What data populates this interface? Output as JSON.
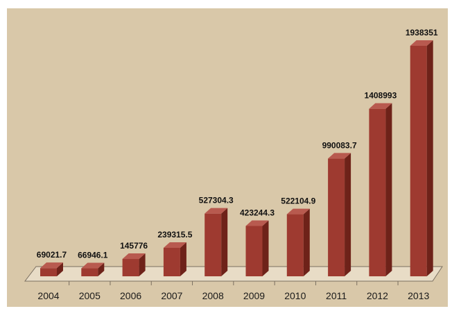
{
  "chart_data": {
    "type": "bar",
    "title": "",
    "xlabel": "",
    "ylabel": "",
    "categories": [
      "2004",
      "2005",
      "2006",
      "2007",
      "2008",
      "2009",
      "2010",
      "2011",
      "2012",
      "2013"
    ],
    "values": [
      69021.7,
      66946.1,
      145776,
      239315.5,
      527304.3,
      423244.3,
      522104.9,
      990083.7,
      1408993,
      1938351
    ],
    "value_labels": [
      "69021.7",
      "66946.1",
      "145776",
      "239315.5",
      "527304.3",
      "423244.3",
      "522104.9",
      "990083.7",
      "1408993",
      "1938351"
    ],
    "ylim": [
      0,
      2000000
    ],
    "grid": false,
    "style": "3d-bar",
    "colors": {
      "background": "#d9c8a9",
      "bar_front": "#9e3a30",
      "bar_side": "#6e2219",
      "bar_top": "#b85a4f",
      "floor": "#e8dcc6"
    }
  }
}
